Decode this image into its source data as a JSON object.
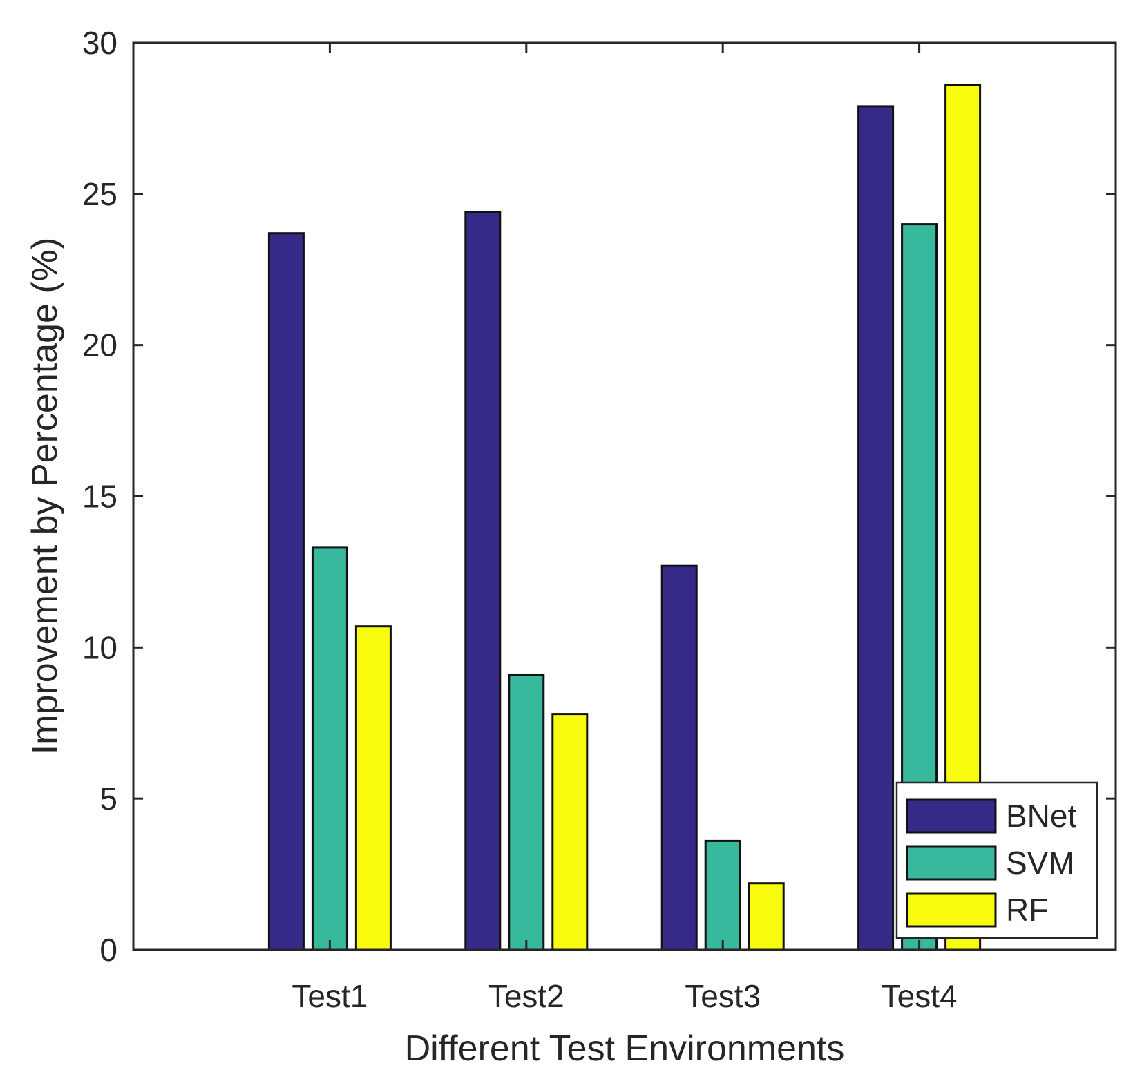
{
  "chart_data": {
    "type": "bar",
    "title": "",
    "xlabel": "Different Test Environments",
    "ylabel": "Improvement  by  Percentage (%)",
    "categories": [
      "Test1",
      "Test2",
      "Test3",
      "Test4"
    ],
    "series": [
      {
        "name": "BNet",
        "color": "#352a87",
        "values": [
          23.7,
          24.4,
          12.7,
          27.9
        ]
      },
      {
        "name": "SVM",
        "color": "#38b99e",
        "values": [
          13.3,
          9.1,
          3.6,
          24.0
        ]
      },
      {
        "name": "RF",
        "color": "#f9fb0e",
        "values": [
          10.7,
          7.8,
          2.2,
          28.6
        ]
      }
    ],
    "ylim": [
      0,
      30
    ],
    "xlim": [
      0,
      5
    ],
    "yticks": [
      "0",
      "5",
      "10",
      "15",
      "20",
      "25",
      "30"
    ],
    "grid": false,
    "legend": {
      "position": "bottom-right",
      "entries": [
        "BNet",
        "SVM",
        "RF"
      ]
    }
  }
}
